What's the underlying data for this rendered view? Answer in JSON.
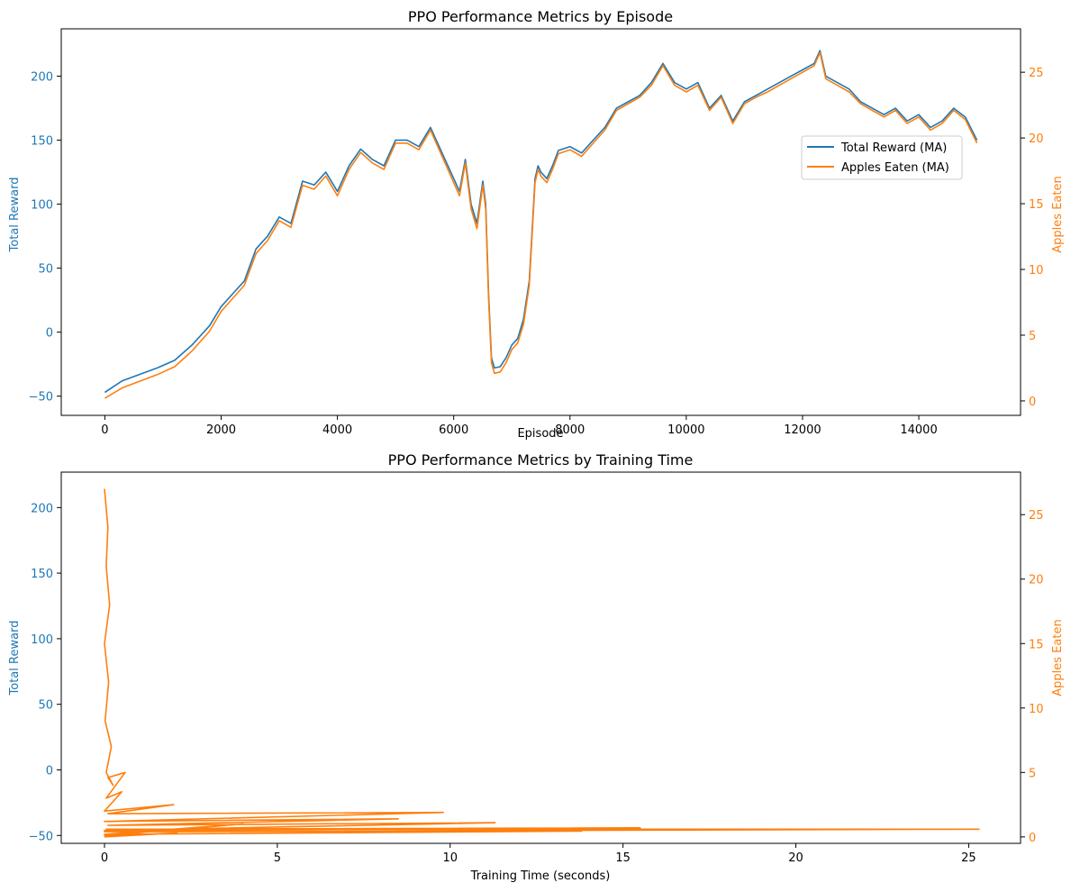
{
  "colors": {
    "reward": "#1f77b4",
    "apples": "#ff7f0e",
    "axis": "#000000",
    "background": "#ffffff"
  },
  "chart_data": [
    {
      "type": "line",
      "title": "PPO Performance Metrics by Episode",
      "xlabel": "Episode",
      "ylabel": "Total Reward",
      "y2label": "Apples Eaten",
      "xlim": [
        -750,
        15750
      ],
      "ylim": [
        -65,
        237
      ],
      "y2lim": [
        -1.1,
        28.3
      ],
      "xticks": [
        "0",
        "2000",
        "4000",
        "6000",
        "8000",
        "10000",
        "12000",
        "14000"
      ],
      "yticks": [
        "−50",
        "0",
        "50",
        "100",
        "150",
        "200"
      ],
      "y2ticks": [
        "0",
        "5",
        "10",
        "15",
        "20",
        "25"
      ],
      "grid": false,
      "legend": {
        "position": "right",
        "entries": [
          "Total Reward (MA)",
          "Apples Eaten (MA)"
        ]
      },
      "series": [
        {
          "name": "Total Reward (MA)",
          "axis": "left",
          "x": [
            0,
            300,
            600,
            900,
            1200,
            1500,
            1800,
            2000,
            2200,
            2400,
            2600,
            2800,
            3000,
            3200,
            3400,
            3600,
            3800,
            4000,
            4200,
            4400,
            4600,
            4800,
            5000,
            5200,
            5400,
            5600,
            5800,
            6000,
            6100,
            6200,
            6300,
            6400,
            6500,
            6550,
            6600,
            6650,
            6700,
            6800,
            6900,
            7000,
            7100,
            7200,
            7300,
            7350,
            7400,
            7450,
            7500,
            7600,
            7700,
            7800,
            8000,
            8200,
            8400,
            8600,
            8800,
            9000,
            9200,
            9400,
            9600,
            9800,
            10000,
            10200,
            10400,
            10600,
            10800,
            11000,
            11200,
            11400,
            11600,
            11800,
            12000,
            12200,
            12300,
            12400,
            12600,
            12800,
            13000,
            13200,
            13400,
            13600,
            13800,
            14000,
            14200,
            14400,
            14600,
            14800,
            15000
          ],
          "y": [
            -47,
            -38,
            -33,
            -28,
            -22,
            -10,
            5,
            20,
            30,
            40,
            65,
            75,
            90,
            85,
            118,
            115,
            125,
            110,
            130,
            143,
            135,
            130,
            150,
            150,
            145,
            160,
            140,
            120,
            110,
            135,
            100,
            85,
            118,
            100,
            30,
            -20,
            -28,
            -27,
            -20,
            -10,
            -5,
            10,
            40,
            80,
            120,
            130,
            125,
            120,
            130,
            142,
            145,
            140,
            150,
            160,
            175,
            180,
            185,
            195,
            210,
            195,
            190,
            195,
            175,
            185,
            165,
            180,
            185,
            190,
            195,
            200,
            205,
            210,
            220,
            200,
            195,
            190,
            180,
            175,
            170,
            175,
            165,
            170,
            160,
            165,
            175,
            168,
            150
          ]
        },
        {
          "name": "Apples Eaten (MA)",
          "axis": "right",
          "x": [
            0,
            300,
            600,
            900,
            1200,
            1500,
            1800,
            2000,
            2200,
            2400,
            2600,
            2800,
            3000,
            3200,
            3400,
            3600,
            3800,
            4000,
            4200,
            4400,
            4600,
            4800,
            5000,
            5200,
            5400,
            5600,
            5800,
            6000,
            6100,
            6200,
            6300,
            6400,
            6500,
            6550,
            6600,
            6650,
            6700,
            6800,
            6900,
            7000,
            7100,
            7200,
            7300,
            7350,
            7400,
            7450,
            7500,
            7600,
            7700,
            7800,
            8000,
            8200,
            8400,
            8600,
            8800,
            9000,
            9200,
            9400,
            9600,
            9800,
            10000,
            10200,
            10400,
            10600,
            10800,
            11000,
            11200,
            11400,
            11600,
            11800,
            12000,
            12200,
            12300,
            12400,
            12600,
            12800,
            13000,
            13200,
            13400,
            13600,
            13800,
            14000,
            14200,
            14400,
            14600,
            14800,
            15000
          ],
          "y": [
            0.2,
            1.0,
            1.5,
            2.0,
            2.6,
            3.8,
            5.3,
            6.8,
            7.8,
            8.8,
            11.2,
            12.2,
            13.7,
            13.2,
            16.4,
            16.1,
            17.1,
            15.6,
            17.6,
            18.9,
            18.1,
            17.6,
            19.6,
            19.6,
            19.1,
            20.6,
            18.6,
            16.6,
            15.6,
            18.1,
            14.6,
            13.1,
            16.4,
            14.6,
            7.8,
            2.9,
            2.1,
            2.2,
            2.9,
            3.9,
            4.4,
            5.8,
            8.8,
            12.7,
            16.6,
            17.6,
            17.1,
            16.6,
            17.6,
            18.8,
            19.1,
            18.6,
            19.6,
            20.6,
            22.1,
            22.6,
            23.1,
            24.0,
            25.5,
            24.0,
            23.5,
            24.0,
            22.1,
            23.1,
            21.1,
            22.6,
            23.1,
            23.5,
            24.0,
            24.5,
            25.0,
            25.5,
            26.5,
            24.5,
            24.0,
            23.5,
            22.6,
            22.1,
            21.6,
            22.1,
            21.1,
            21.6,
            20.6,
            21.1,
            22.1,
            21.4,
            19.6
          ]
        }
      ]
    },
    {
      "type": "line",
      "title": "PPO Performance Metrics by Training Time",
      "xlabel": "Training Time (seconds)",
      "ylabel": "Total Reward",
      "y2label": "Apples Eaten",
      "xlim": [
        -1.25,
        26.5
      ],
      "ylim": [
        -56,
        227
      ],
      "y2lim": [
        -0.5,
        28.3
      ],
      "xticks": [
        "0",
        "5",
        "10",
        "15",
        "20",
        "25"
      ],
      "yticks": [
        "−50",
        "0",
        "50",
        "100",
        "150",
        "200"
      ],
      "y2ticks": [
        "0",
        "5",
        "10",
        "15",
        "20",
        "25"
      ],
      "grid": false,
      "series": [
        {
          "name": "Apples Eaten (MA)",
          "axis": "right",
          "x": [
            0.0,
            0.1,
            0.05,
            0.15,
            0.0,
            0.12,
            0.02,
            0.2,
            0.05,
            0.25,
            0.1,
            0.6,
            0.05,
            0.5,
            0.0,
            2.0,
            0.1,
            9.8,
            0.0,
            8.5,
            0.1,
            11.3,
            0.0,
            15.5,
            0.05,
            25.3,
            0.0,
            13.8,
            0.0,
            4.0,
            0.0,
            2.1,
            0.0
          ],
          "y": [
            27.0,
            24.0,
            21.0,
            18.0,
            15.0,
            12.0,
            9.0,
            7.0,
            5.0,
            4.0,
            4.6,
            5.0,
            3.0,
            3.5,
            2.0,
            2.5,
            1.8,
            1.9,
            1.2,
            1.4,
            0.9,
            1.1,
            0.5,
            0.7,
            0.6,
            0.6,
            0.4,
            0.45,
            0.2,
            1.0,
            0.1,
            0.3,
            0.0
          ]
        }
      ]
    }
  ]
}
